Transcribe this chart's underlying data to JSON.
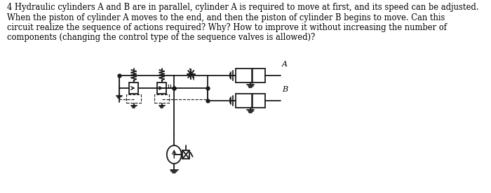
{
  "text_line1": "4 Hydraulic cylinders A and B are in parallel, cylinder A is required to move at first, and its speed can be adjusted.",
  "text_line2": "When the piston of cylinder A moves to the end, and then the piston of cylinder B begins to move. Can this",
  "text_line3": "circuit realize the sequence of actions required? Why? How to improve it without increasing the number of",
  "text_line4": "components (changing the control type of the sequence valves is allowed)?",
  "bg_color": "#ffffff",
  "diagram_color": "#1a1a1a",
  "label_A": "A",
  "label_B": "B",
  "text_fontsize": 8.3,
  "label_fontsize": 8.0
}
